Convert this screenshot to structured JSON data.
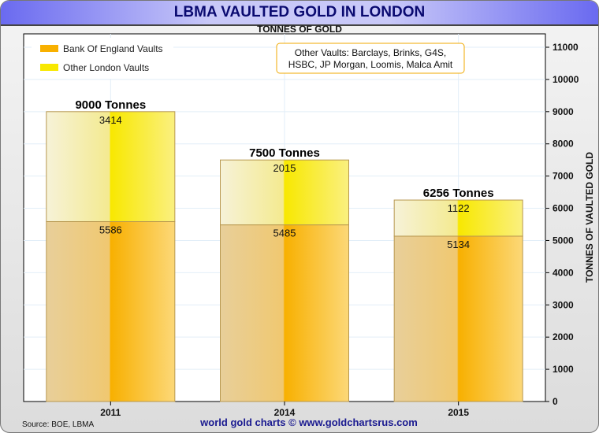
{
  "chart_data": {
    "type": "bar",
    "stacked": true,
    "title": "LBMA VAULTED GOLD IN LONDON",
    "subtitle": "TONNES OF GOLD",
    "ylabel": "TONNES OF VAULTED GOLD",
    "ylim": [
      0,
      11000
    ],
    "yticks": [
      0,
      1000,
      2000,
      3000,
      4000,
      5000,
      6000,
      7000,
      8000,
      9000,
      10000,
      11000
    ],
    "categories": [
      "2011",
      "2014",
      "2015"
    ],
    "series": [
      {
        "name": "Bank Of England Vaults",
        "values": [
          5586,
          5485,
          5134
        ],
        "color": "#f8b000"
      },
      {
        "name": "Other London Vaults",
        "values": [
          3414,
          2015,
          1122
        ],
        "color": "#f8e800"
      }
    ],
    "totals_labels": [
      "9000 Tonnes",
      "7500 Tonnes",
      "6256 Tonnes"
    ],
    "annotation": "Other Vaults: Barclays, Brinks, G4S, HSBC, JP Morgan, Loomis, Malca Amit",
    "annotation_lines": [
      "Other Vaults: Barclays, Brinks, G4S,",
      "HSBC, JP Morgan, Loomis, Malca Amit"
    ],
    "legend_position": "top-left",
    "grid": true,
    "source": "Source: BOE, LBMA",
    "credit": "world gold charts © www.goldchartsrus.com"
  }
}
